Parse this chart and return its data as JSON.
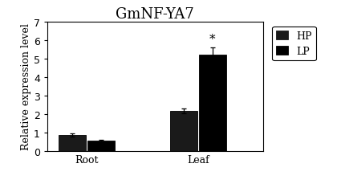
{
  "title": "GmNF-YA7",
  "ylabel": "Relative expression level",
  "groups": [
    "Root",
    "Leaf"
  ],
  "series": [
    "HP",
    "LP"
  ],
  "values": [
    [
      0.85,
      0.55
    ],
    [
      2.15,
      5.2
    ]
  ],
  "errors": [
    [
      0.09,
      0.05
    ],
    [
      0.12,
      0.38
    ]
  ],
  "bar_colors": [
    "#1a1a1a",
    "#000000"
  ],
  "bar_width": 0.38,
  "group_positions": [
    0.65,
    2.2
  ],
  "ylim": [
    0,
    7
  ],
  "yticks": [
    0,
    1,
    2,
    3,
    4,
    5,
    6,
    7
  ],
  "asterisk_text": "*",
  "asterisk_group": 1,
  "asterisk_series": 1,
  "title_fontsize": 13,
  "axis_fontsize": 9,
  "tick_fontsize": 9,
  "legend_fontsize": 9,
  "bg_color": "#ffffff",
  "edge_color": "#000000",
  "xlim": [
    0.1,
    3.1
  ]
}
